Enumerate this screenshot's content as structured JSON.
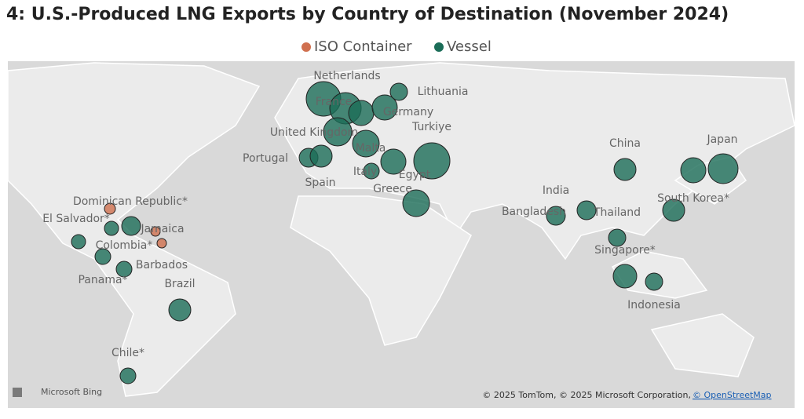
{
  "title": "4: U.S.-Produced LNG Exports by Country of Destination (November 2024)",
  "legend": [
    {
      "name": "ISO Container",
      "color": "#d0704f"
    },
    {
      "name": "Vessel",
      "color": "#1b6d58"
    }
  ],
  "markers": [
    {
      "label": "Netherlands",
      "kind": 1
    },
    {
      "label": "France",
      "kind": 1
    },
    {
      "label": null,
      "kind": 1
    },
    {
      "label": "Germany",
      "kind": 1
    },
    {
      "label": "Lithuania",
      "kind": 1
    },
    {
      "label": "United Kingdom",
      "kind": 1
    },
    {
      "label": "Malta",
      "kind": 1
    },
    {
      "label": "Turkiye",
      "kind": 1
    },
    {
      "label": "Portugal",
      "kind": 1
    },
    {
      "label": "Spain",
      "kind": 1
    },
    {
      "label": "Italy",
      "kind": 1
    },
    {
      "label": "Greece",
      "kind": 1
    },
    {
      "label": "Egypt",
      "kind": 1
    },
    {
      "label": "China",
      "kind": 1
    },
    {
      "label": "Japan",
      "kind": 1
    },
    {
      "label": null,
      "kind": 1
    },
    {
      "label": "South Korea*",
      "kind": 1
    },
    {
      "label": "India",
      "kind": 1
    },
    {
      "label": "Bangladesh",
      "kind": 1
    },
    {
      "label": "Thailand",
      "kind": 1
    },
    {
      "label": "Singapore*",
      "kind": 1
    },
    {
      "label": "Indonesia",
      "kind": 1
    },
    {
      "label": "Brazil",
      "kind": 1
    },
    {
      "label": "Chile*",
      "kind": 1
    },
    {
      "label": "Panama*",
      "kind": 1
    },
    {
      "label": "Barbados",
      "kind": 1
    },
    {
      "label": "Colombia*",
      "kind": 1
    },
    {
      "label": "El Salvador*",
      "kind": 1
    },
    {
      "label": null,
      "kind": 1
    },
    {
      "label": "Dominican Republic*",
      "kind": 0
    },
    {
      "label": "Jamaica",
      "kind": 0
    },
    {
      "label": null,
      "kind": 0
    }
  ],
  "footer": {
    "brand": "Microsoft Bing",
    "copyright": "© 2025 TomTom, © 2025 Microsoft Corporation, ",
    "link": "© OpenStreetMap"
  }
}
